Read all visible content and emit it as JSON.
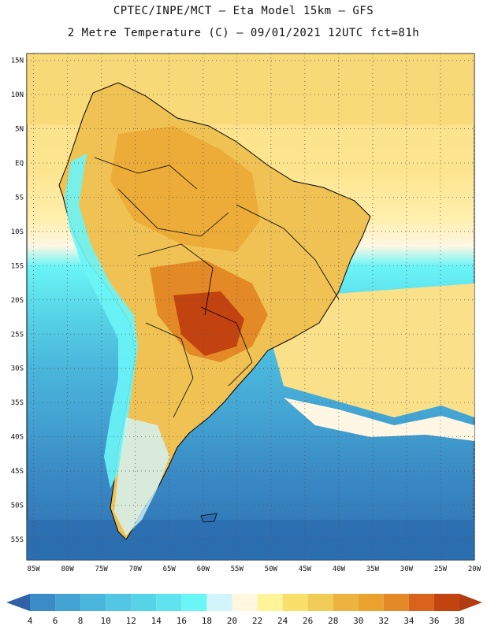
{
  "header": {
    "line1": "CPTEC/INPE/MCT –  Eta Model 15km – GFS",
    "line2": "2 Metre Temperature (C) – 09/01/2021 12UTC fct=81h"
  },
  "map": {
    "lat_labels": [
      "15N",
      "10N",
      "5N",
      "EQ",
      "5S",
      "10S",
      "15S",
      "20S",
      "25S",
      "30S",
      "35S",
      "40S",
      "45S",
      "50S",
      "55S"
    ],
    "lon_labels": [
      "85W",
      "80W",
      "75W",
      "70W",
      "65W",
      "60W",
      "55W",
      "50W",
      "45W",
      "40W",
      "35W",
      "30W",
      "25W",
      "20W"
    ],
    "lat_range": [
      -58,
      16
    ],
    "lon_range": [
      -86,
      -20
    ]
  },
  "legend": {
    "labels": [
      "4",
      "6",
      "8",
      "10",
      "12",
      "14",
      "16",
      "18",
      "20",
      "22",
      "24",
      "26",
      "28",
      "30",
      "32",
      "34",
      "36",
      "38"
    ],
    "colors": [
      "#2c6fb0",
      "#3b8cc6",
      "#43a3d2",
      "#4ab6dc",
      "#52c6e2",
      "#56d3e6",
      "#5fe4ef",
      "#6af5f7",
      "#d2f5fb",
      "#fff7e0",
      "#fff49a",
      "#f8e06a",
      "#f2cc58",
      "#ecb43e",
      "#e9a22b",
      "#e38a27",
      "#d9631c",
      "#c24210"
    ],
    "low_color": "#2f62a6",
    "high_color": "#b23c12"
  }
}
